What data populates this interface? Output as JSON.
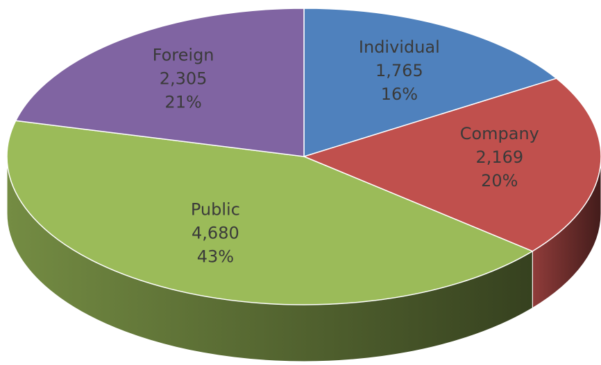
{
  "chart_data": {
    "type": "pie3d",
    "categories": [
      "Individual",
      "Company",
      "Public",
      "Foreign"
    ],
    "values": [
      1765,
      2169,
      4680,
      2305
    ],
    "value_labels": [
      "1,765",
      "2,169",
      "4,680",
      "2,305"
    ],
    "percents": [
      16,
      20,
      43,
      21
    ],
    "percent_labels": [
      "16%",
      "20%",
      "43%",
      "21%"
    ],
    "colors": [
      "#4f81bd",
      "#c0504d",
      "#9bbb59",
      "#8064a2"
    ]
  }
}
